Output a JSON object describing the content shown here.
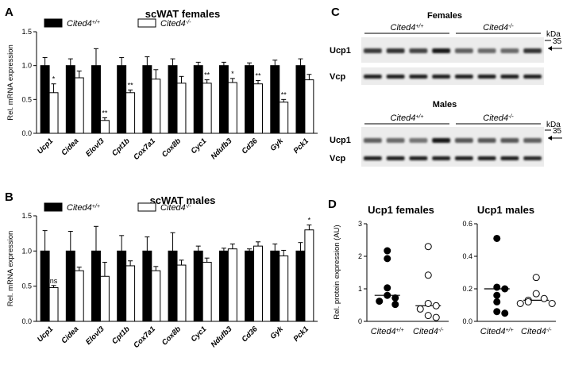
{
  "panels": {
    "A": "A",
    "B": "B",
    "C": "C",
    "D": "D"
  },
  "colors": {
    "wt": "#000000",
    "ko": "#ffffff",
    "stroke": "#000000"
  },
  "chart_data": [
    {
      "type": "bar",
      "panel": "A",
      "title": "scWAT females",
      "ylabel": "Rel. mRNA expression",
      "ylim": [
        0,
        1.5
      ],
      "yticks": [
        "0.0",
        "0.5",
        "1.0",
        "1.5"
      ],
      "categories": [
        "Ucp1",
        "Cidea",
        "Elovl3",
        "Cpt1b",
        "Cox7a1",
        "Cox8b",
        "Cyc1",
        "Ndufb3",
        "Cd36",
        "Gyk",
        "Pck1"
      ],
      "series": [
        {
          "name": "Cited4+/+",
          "name_base": "Cited4",
          "name_sup": "+/+",
          "values": [
            1.0,
            1.0,
            1.0,
            1.0,
            1.0,
            1.0,
            1.0,
            1.0,
            1.0,
            1.0,
            1.0
          ],
          "err": [
            0.12,
            0.1,
            0.25,
            0.12,
            0.13,
            0.1,
            0.05,
            0.05,
            0.04,
            0.08,
            0.1
          ]
        },
        {
          "name": "Cited4-/-",
          "name_base": "Cited4",
          "name_sup": "-/-",
          "values": [
            0.6,
            0.82,
            0.19,
            0.6,
            0.8,
            0.74,
            0.74,
            0.75,
            0.73,
            0.46,
            0.79
          ],
          "err": [
            0.13,
            0.1,
            0.04,
            0.04,
            0.14,
            0.1,
            0.05,
            0.06,
            0.05,
            0.04,
            0.08
          ]
        }
      ],
      "significance": [
        "*",
        "",
        "**",
        "**",
        "",
        "",
        "**",
        "*",
        "**",
        "**",
        ""
      ]
    },
    {
      "type": "bar",
      "panel": "B",
      "title": "scWAT males",
      "ylabel": "Rel. mRNA expression",
      "ylim": [
        0,
        1.5
      ],
      "yticks": [
        "0.0",
        "0.5",
        "1.0",
        "1.5"
      ],
      "categories": [
        "Ucp1",
        "Cidea",
        "Elovl3",
        "Cpt1b",
        "Cox7a1",
        "Cox8b",
        "Cyc1",
        "Ndufb3",
        "Cd36",
        "Gyk",
        "Pck1"
      ],
      "series": [
        {
          "name": "Cited4+/+",
          "name_base": "Cited4",
          "name_sup": "+/+",
          "values": [
            1.0,
            1.0,
            1.0,
            1.0,
            1.0,
            1.0,
            1.0,
            1.0,
            1.0,
            1.0,
            1.0
          ],
          "err": [
            0.29,
            0.28,
            0.35,
            0.22,
            0.2,
            0.26,
            0.07,
            0.04,
            0.03,
            0.1,
            0.12
          ]
        },
        {
          "name": "Cited4-/-",
          "name_base": "Cited4",
          "name_sup": "-/-",
          "values": [
            0.48,
            0.72,
            0.64,
            0.79,
            0.72,
            0.8,
            0.84,
            1.03,
            1.07,
            0.93,
            1.3
          ],
          "err": [
            0.03,
            0.05,
            0.2,
            0.07,
            0.06,
            0.07,
            0.06,
            0.07,
            0.06,
            0.08,
            0.07
          ]
        }
      ],
      "significance": [
        "ns",
        "",
        "",
        "",
        "",
        "",
        "",
        "",
        "",
        "",
        "*"
      ]
    },
    {
      "type": "scatter",
      "panel": "D",
      "title": "Ucp1 females",
      "ylabel": "Rel. protein expression (AU)",
      "ylim": [
        0,
        3
      ],
      "yticks": [
        "0",
        "1",
        "2",
        "3"
      ],
      "groups": [
        {
          "name": "Cited4+/+",
          "name_base": "Cited4",
          "name_sup": "+/+",
          "filled": true,
          "values": [
            2.17,
            1.93,
            1.03,
            0.8,
            0.72,
            0.62,
            0.52
          ],
          "median": 0.8
        },
        {
          "name": "Cited4-/-",
          "name_base": "Cited4",
          "name_sup": "-/-",
          "filled": false,
          "values": [
            2.3,
            1.42,
            0.55,
            0.48,
            0.38,
            0.18,
            0.12
          ],
          "median": 0.48
        }
      ]
    },
    {
      "type": "scatter",
      "panel": "D",
      "title": "Ucp1 males",
      "ylabel": "",
      "ylim": [
        0,
        0.6
      ],
      "yticks": [
        "0.0",
        "0.2",
        "0.4",
        "0.6"
      ],
      "groups": [
        {
          "name": "Cited4+/+",
          "name_base": "Cited4",
          "name_sup": "+/+",
          "filled": true,
          "values": [
            0.51,
            0.21,
            0.2,
            0.16,
            0.12,
            0.06,
            0.05
          ],
          "median": 0.2
        },
        {
          "name": "Cited4-/-",
          "name_base": "Cited4",
          "name_sup": "-/-",
          "filled": false,
          "values": [
            0.27,
            0.17,
            0.14,
            0.13,
            0.12,
            0.11,
            0.11
          ],
          "median": 0.13
        }
      ]
    }
  ],
  "blots": {
    "females": {
      "title": "Females",
      "kda_label": "kDa",
      "marker": "35",
      "groups": [
        {
          "base": "Cited4",
          "sup": "+/+"
        },
        {
          "base": "Cited4",
          "sup": "-/-"
        }
      ],
      "rows": [
        {
          "label": "Ucp1",
          "intensity": [
            0.75,
            0.8,
            0.7,
            0.95,
            0.55,
            0.5,
            0.5,
            0.8
          ]
        },
        {
          "label": "Vcp",
          "intensity": [
            0.9,
            0.9,
            0.9,
            0.9,
            0.9,
            0.9,
            0.9,
            0.9
          ]
        }
      ]
    },
    "males": {
      "title": "Males",
      "kda_label": "kDa",
      "marker": "35",
      "groups": [
        {
          "base": "Cited4",
          "sup": "+/+"
        },
        {
          "base": "Cited4",
          "sup": "-/-"
        }
      ],
      "rows": [
        {
          "label": "Ucp1",
          "intensity": [
            0.55,
            0.5,
            0.45,
            0.95,
            0.6,
            0.6,
            0.6,
            0.55
          ]
        },
        {
          "label": "Vcp",
          "intensity": [
            0.9,
            0.9,
            0.9,
            0.9,
            0.9,
            0.9,
            0.9,
            0.85
          ]
        }
      ]
    }
  }
}
